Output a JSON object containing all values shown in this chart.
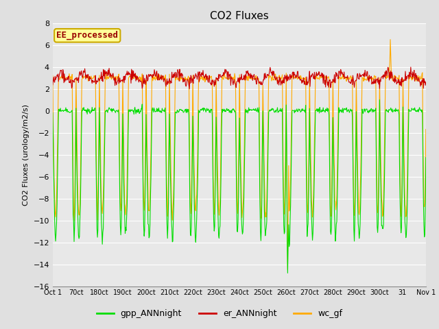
{
  "title": "CO2 Fluxes",
  "ylabel": "CO2 Fluxes (urology/m2/s)",
  "ylim": [
    -16,
    8
  ],
  "yticks": [
    -16,
    -14,
    -12,
    -10,
    -8,
    -6,
    -4,
    -2,
    0,
    2,
    4,
    6,
    8
  ],
  "background_color": "#e0e0e0",
  "plot_bg_color": "#e8e8e8",
  "grid_color": "#ffffff",
  "tick_labels": [
    "Oct 1",
    "70ct",
    "180ct",
    "190ct",
    "200ct",
    "210ct",
    "220ct",
    "230ct",
    "240ct",
    "250ct",
    "260ct",
    "270ct",
    "280ct",
    "290ct",
    "300ct",
    "31",
    "Nov 1"
  ],
  "legend_labels": [
    "gpp_ANNnight",
    "er_ANNnight",
    "wc_gf"
  ],
  "legend_colors": [
    "#00dd00",
    "#cc0000",
    "#ffaa00"
  ],
  "watermark_text": "EE_processed",
  "watermark_bg": "#ffff99",
  "watermark_border": "#ccaa00",
  "watermark_text_color": "#990000",
  "line_width": 0.8,
  "n_days": 16,
  "hours_per_day": 48
}
